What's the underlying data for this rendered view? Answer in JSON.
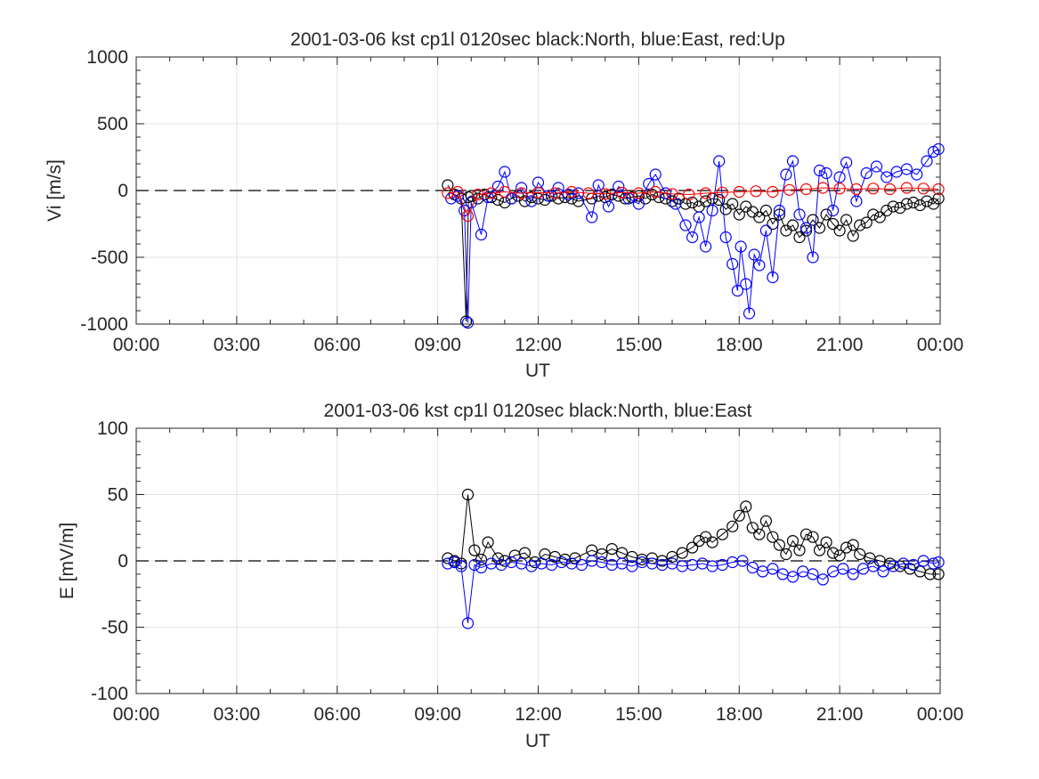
{
  "chart_data": [
    {
      "type": "scatter",
      "title": "2001-03-06 kst cp1l 0120sec black:North, blue:East, red:Up",
      "xlabel": "UT",
      "ylabel": "Vi [m/s]",
      "xlim": [
        "00:00",
        "24:00"
      ],
      "ylim": [
        -1000,
        1000
      ],
      "xticks": [
        "00:00",
        "03:00",
        "06:00",
        "09:00",
        "12:00",
        "15:00",
        "18:00",
        "21:00",
        "00:00"
      ],
      "yticks": [
        "1000",
        "500",
        "0",
        "-500",
        "-1000"
      ],
      "grid": true,
      "zero_line": "dashed",
      "series": [
        {
          "name": "North",
          "color": "#000000",
          "x": [
            9.3,
            9.5,
            9.7,
            9.85,
            9.92,
            10.0,
            10.2,
            10.4,
            10.6,
            10.8,
            11.0,
            11.2,
            11.4,
            11.6,
            11.8,
            12.0,
            12.2,
            12.4,
            12.6,
            12.8,
            13.0,
            13.2,
            13.6,
            13.8,
            14.0,
            14.2,
            14.4,
            14.6,
            14.8,
            15.0,
            15.2,
            15.4,
            15.6,
            15.8,
            16.0,
            16.2,
            16.4,
            16.6,
            16.8,
            17.0,
            17.2,
            17.4,
            17.6,
            17.8,
            18.0,
            18.2,
            18.4,
            18.6,
            18.8,
            19.0,
            19.2,
            19.4,
            19.6,
            19.8,
            20.0,
            20.2,
            20.4,
            20.6,
            20.8,
            21.0,
            21.2,
            21.4,
            21.6,
            21.8,
            22.0,
            22.2,
            22.4,
            22.6,
            22.8,
            23.0,
            23.2,
            23.4,
            23.6,
            23.8,
            23.95
          ],
          "y": [
            40,
            -30,
            -60,
            -980,
            -50,
            -40,
            -60,
            -30,
            -50,
            -70,
            -90,
            -60,
            -40,
            -80,
            -50,
            -60,
            -70,
            -40,
            -60,
            -50,
            -60,
            -80,
            -60,
            -40,
            -50,
            -30,
            -40,
            -60,
            -50,
            -40,
            -60,
            -30,
            -50,
            -60,
            -80,
            -60,
            -100,
            -90,
            -120,
            -80,
            -60,
            -70,
            -140,
            -100,
            -180,
            -120,
            -160,
            -200,
            -150,
            -250,
            -180,
            -300,
            -260,
            -350,
            -300,
            -220,
            -280,
            -180,
            -250,
            -300,
            -220,
            -340,
            -260,
            -240,
            -180,
            -200,
            -150,
            -120,
            -130,
            -100,
            -90,
            -110,
            -80,
            -100,
            -60
          ]
        },
        {
          "name": "East",
          "color": "#0000ff",
          "x": [
            9.4,
            9.6,
            9.8,
            9.9,
            10.0,
            10.3,
            10.5,
            10.8,
            11.0,
            11.2,
            11.5,
            11.8,
            12.0,
            12.3,
            12.6,
            12.9,
            13.2,
            13.6,
            13.8,
            14.1,
            14.4,
            14.7,
            15.0,
            15.3,
            15.5,
            15.8,
            16.1,
            16.4,
            16.6,
            16.8,
            17.0,
            17.2,
            17.4,
            17.6,
            17.8,
            17.95,
            18.05,
            18.2,
            18.3,
            18.45,
            18.6,
            18.8,
            19.0,
            19.2,
            19.4,
            19.6,
            19.8,
            20.0,
            20.2,
            20.4,
            20.6,
            20.8,
            21.0,
            21.2,
            21.5,
            21.8,
            22.1,
            22.4,
            22.7,
            23.0,
            23.3,
            23.6,
            23.8,
            23.95
          ],
          "y": [
            -60,
            -40,
            -150,
            -990,
            -90,
            -330,
            -50,
            30,
            140,
            -60,
            20,
            -80,
            60,
            -40,
            20,
            -30,
            -20,
            -200,
            40,
            -120,
            30,
            -60,
            -100,
            50,
            120,
            -20,
            -100,
            -260,
            -350,
            -200,
            -420,
            -150,
            220,
            -350,
            -550,
            -750,
            -420,
            -700,
            -920,
            -480,
            -560,
            -300,
            -650,
            -150,
            120,
            220,
            -180,
            -280,
            -500,
            150,
            130,
            -150,
            100,
            210,
            -80,
            130,
            180,
            100,
            140,
            160,
            120,
            220,
            290,
            310
          ]
        },
        {
          "name": "Up",
          "color": "#ff0000",
          "x": [
            9.3,
            9.6,
            9.9,
            10.2,
            10.6,
            11.0,
            11.5,
            12.0,
            12.5,
            13.0,
            13.5,
            14.0,
            14.5,
            15.0,
            15.5,
            16.0,
            16.5,
            17.0,
            17.5,
            18.0,
            18.5,
            19.0,
            19.5,
            20.0,
            20.5,
            21.0,
            21.5,
            22.0,
            22.5,
            23.0,
            23.5,
            23.95
          ],
          "y": [
            -20,
            -10,
            -190,
            -30,
            -20,
            -10,
            -20,
            -15,
            -20,
            -10,
            -20,
            -25,
            -15,
            -20,
            -10,
            -25,
            -30,
            -20,
            -15,
            -10,
            -5,
            -10,
            5,
            10,
            20,
            15,
            10,
            15,
            10,
            20,
            15,
            10
          ]
        }
      ]
    },
    {
      "type": "scatter",
      "title": "2001-03-06 kst cp1l 0120sec black:North, blue:East",
      "xlabel": "UT",
      "ylabel": "E [mV/m]",
      "xlim": [
        "00:00",
        "24:00"
      ],
      "ylim": [
        -100,
        100
      ],
      "xticks": [
        "00:00",
        "03:00",
        "06:00",
        "09:00",
        "12:00",
        "15:00",
        "18:00",
        "21:00",
        "00:00"
      ],
      "yticks": [
        "100",
        "50",
        "0",
        "-50",
        "-100"
      ],
      "grid": true,
      "zero_line": "dashed",
      "series": [
        {
          "name": "North",
          "color": "#000000",
          "x": [
            9.3,
            9.5,
            9.7,
            9.9,
            10.1,
            10.3,
            10.5,
            10.8,
            11.0,
            11.3,
            11.6,
            11.9,
            12.2,
            12.5,
            12.8,
            13.1,
            13.6,
            13.9,
            14.2,
            14.5,
            14.8,
            15.1,
            15.4,
            15.7,
            16.0,
            16.3,
            16.6,
            16.8,
            17.0,
            17.2,
            17.5,
            17.8,
            18.0,
            18.2,
            18.4,
            18.6,
            18.8,
            19.0,
            19.2,
            19.4,
            19.6,
            19.8,
            20.0,
            20.2,
            20.4,
            20.6,
            20.8,
            21.0,
            21.2,
            21.4,
            21.6,
            21.9,
            22.2,
            22.5,
            22.8,
            23.1,
            23.4,
            23.7,
            23.95
          ],
          "y": [
            2,
            0,
            -2,
            50,
            8,
            1,
            14,
            2,
            0,
            4,
            6,
            -1,
            5,
            3,
            1,
            2,
            8,
            5,
            9,
            6,
            3,
            1,
            2,
            0,
            3,
            6,
            10,
            15,
            18,
            14,
            20,
            26,
            34,
            41,
            25,
            20,
            30,
            18,
            12,
            5,
            15,
            8,
            20,
            18,
            8,
            14,
            6,
            4,
            10,
            12,
            5,
            2,
            0,
            -2,
            -4,
            -6,
            -8,
            -10,
            -10
          ]
        },
        {
          "name": "East",
          "color": "#0000ff",
          "x": [
            9.3,
            9.5,
            9.7,
            9.9,
            10.1,
            10.3,
            10.6,
            10.9,
            11.2,
            11.5,
            11.8,
            12.1,
            12.4,
            12.7,
            13.0,
            13.3,
            13.6,
            13.9,
            14.2,
            14.5,
            14.8,
            15.1,
            15.4,
            15.7,
            16.0,
            16.3,
            16.6,
            16.9,
            17.2,
            17.5,
            17.8,
            18.1,
            18.4,
            18.7,
            19.0,
            19.3,
            19.6,
            19.9,
            20.2,
            20.5,
            20.8,
            21.1,
            21.4,
            21.7,
            22.0,
            22.3,
            22.6,
            22.9,
            23.2,
            23.5,
            23.8,
            23.95
          ],
          "y": [
            -2,
            -1,
            -4,
            -47,
            -3,
            -5,
            -2,
            -3,
            -1,
            -2,
            -4,
            -2,
            -3,
            -1,
            -2,
            -3,
            0,
            -1,
            -3,
            -2,
            -4,
            -1,
            -2,
            -3,
            -2,
            -4,
            -3,
            -2,
            -4,
            -3,
            -1,
            0,
            -5,
            -8,
            -6,
            -10,
            -12,
            -8,
            -10,
            -14,
            -8,
            -6,
            -10,
            -6,
            -4,
            -8,
            -4,
            -2,
            -3,
            0,
            -2,
            -1
          ]
        }
      ]
    }
  ]
}
